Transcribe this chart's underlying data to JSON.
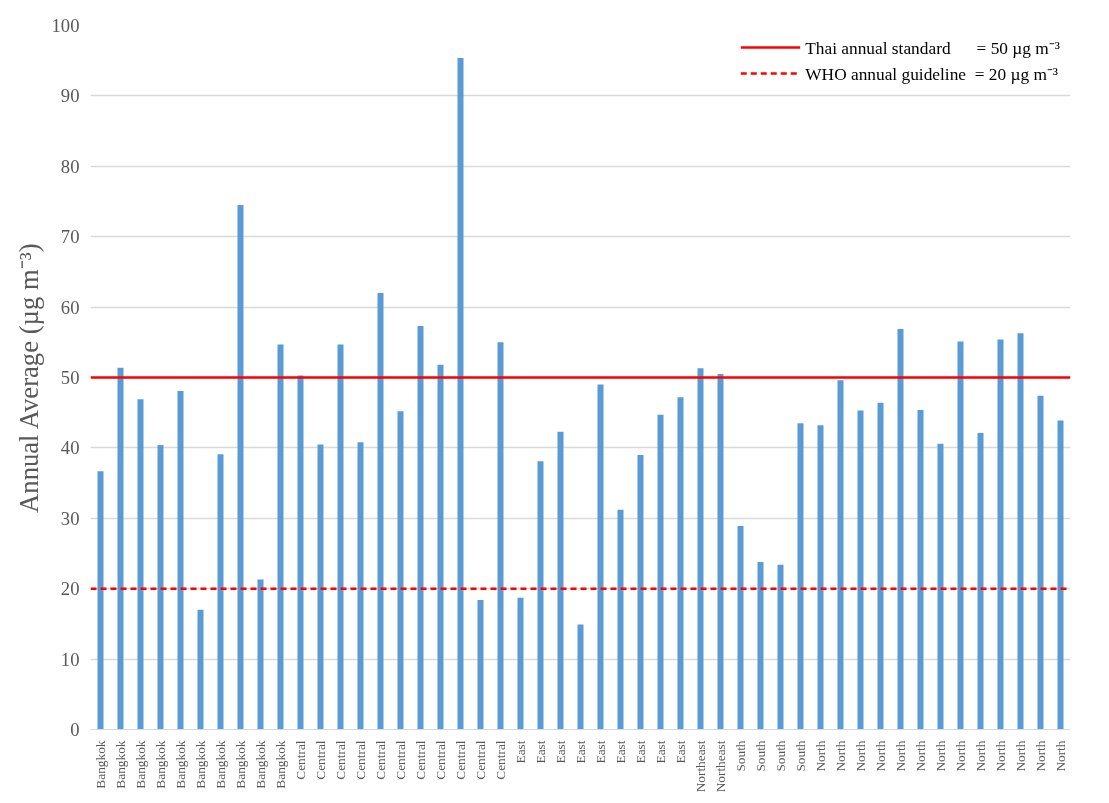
{
  "chart_data": {
    "type": "bar",
    "ylabel": "Annual Average (µg m⁻³)",
    "categories": [
      "Bangkok",
      "Bangkok",
      "Bangkok",
      "Bangkok",
      "Bangkok",
      "Bangkok",
      "Bangkok",
      "Bangkok",
      "Bangkok",
      "Bangkok",
      "Central",
      "Central",
      "Central",
      "Central",
      "Central",
      "Central",
      "Central",
      "Central",
      "Central",
      "Central",
      "Central",
      "East",
      "East",
      "East",
      "East",
      "East",
      "East",
      "East",
      "East",
      "East",
      "Northeast",
      "Northeast",
      "South",
      "South",
      "South",
      "South",
      "North",
      "North",
      "North",
      "North",
      "North",
      "North",
      "North",
      "North",
      "North",
      "North",
      "North",
      "North",
      "North"
    ],
    "values": [
      36.7,
      51.4,
      46.9,
      40.4,
      48.1,
      17.0,
      39.1,
      74.5,
      21.3,
      54.7,
      50.3,
      40.5,
      54.7,
      40.8,
      62.0,
      45.2,
      57.3,
      51.8,
      95.4,
      18.4,
      55.0,
      18.7,
      38.1,
      42.3,
      14.9,
      49.0,
      31.2,
      39.0,
      44.7,
      47.2,
      51.3,
      50.5,
      28.9,
      23.8,
      23.4,
      43.5,
      43.2,
      49.6,
      45.3,
      46.4,
      56.9,
      45.4,
      40.6,
      55.1,
      42.1,
      55.4,
      56.3,
      47.4,
      43.9
    ],
    "color": "#5b9bd5",
    "ylim": [
      0,
      100
    ],
    "yticks": [
      0,
      10,
      20,
      30,
      40,
      50,
      60,
      70,
      80,
      90,
      100
    ],
    "grid": "y",
    "legend": "top right",
    "ref_lines": [
      {
        "axis": "y",
        "value": 50,
        "label": "Thai annual standard      = 50 µg m⁻³",
        "color": "#ff0000",
        "line_style": "solid"
      },
      {
        "axis": "y",
        "value": 20,
        "label": "WHO annual guideline  = 20 µg m⁻³",
        "color": "#ff0000",
        "line_style": "dashed"
      }
    ]
  }
}
